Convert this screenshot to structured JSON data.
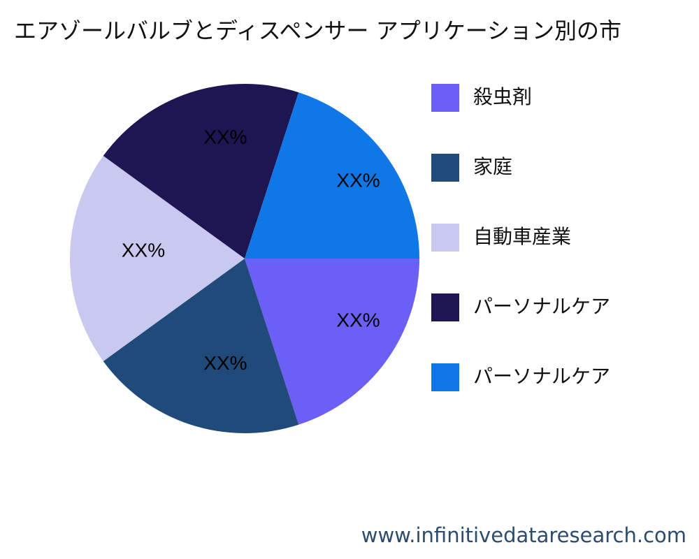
{
  "chart_data": {
    "type": "pie",
    "title": "エアゾールバルブとディスペンサー アプリケーション別の市",
    "categories": [
      "殺虫剤",
      "家庭",
      "自動車産業",
      "パーソナルケア",
      "パーソナルケア"
    ],
    "values": [
      20,
      20,
      20,
      20,
      20
    ],
    "value_labels": [
      "XX%",
      "XX%",
      "XX%",
      "XX%",
      "XX%"
    ],
    "colors": [
      "#6c5ff5",
      "#1f4a79",
      "#c9c9f0",
      "#1d1652",
      "#0f78e6"
    ],
    "legend": "right",
    "source": "www.infinitivedataresearch.com"
  }
}
